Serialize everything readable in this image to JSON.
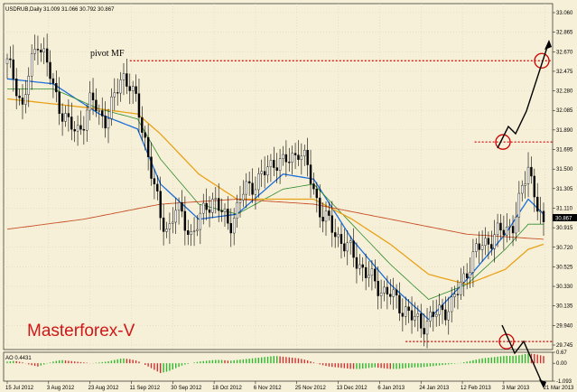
{
  "header": {
    "symbol_info": "USDRUB,Daily  31.009 31.066 30.792 30.867"
  },
  "annotations": {
    "pivot_label": "pivot MF",
    "brand": "Masterforex-V"
  },
  "indicator": {
    "label": "AO 0.4431"
  },
  "colors": {
    "background": "#f7f0d8",
    "grid": "#d9d0b2",
    "candle": "#000000",
    "ma_fast": "#1e6fd9",
    "ma_mid": "#2e8b2e",
    "ma_slow": "#e8a21a",
    "ma_long": "#c8502a",
    "pivot_line": "#cc0000",
    "ao_up": "#2db82d",
    "ao_down": "#d03030",
    "brand_text": "#d01818"
  },
  "chart_data": [
    {
      "type": "candlestick",
      "title": "USDRUB,Daily",
      "ohlc_last": {
        "open": 31.009,
        "high": 31.066,
        "low": 30.792,
        "close": 30.867
      },
      "current_price": "30.867",
      "y_ticks": [
        "33.060",
        "32.865",
        "32.670",
        "32.475",
        "32.280",
        "32.085",
        "31.890",
        "31.695",
        "31.500",
        "31.305",
        "31.110",
        "30.915",
        "30.720",
        "30.525",
        "30.330",
        "30.135",
        "29.940",
        "29.745"
      ],
      "ylim": [
        29.7,
        33.15
      ],
      "x_ticks": [
        "15 Jul 2012",
        "3 Aug 2012",
        "23 Aug 2012",
        "11 Sep 2012",
        "30 Sep 2012",
        "18 Oct 2012",
        "6 Nov 2012",
        "25 Nov 2012",
        "13 Dec 2012",
        "6 Jan 2013",
        "24 Jan 2013",
        "12 Feb 2013",
        "3 Mar 2013",
        "21 Mar 2013"
      ],
      "close_path": [
        [
          0,
          32.55
        ],
        [
          1,
          32.4
        ],
        [
          2,
          32.1
        ],
        [
          3,
          32.5
        ],
        [
          4,
          32.8
        ],
        [
          5,
          32.6
        ],
        [
          6,
          32.3
        ],
        [
          7,
          32.1
        ],
        [
          8,
          31.95
        ],
        [
          9,
          31.85
        ],
        [
          10,
          32.0
        ],
        [
          11,
          32.2
        ],
        [
          12,
          32.05
        ],
        [
          13,
          32.0
        ],
        [
          14,
          32.2
        ],
        [
          15,
          32.45
        ],
        [
          16,
          32.35
        ],
        [
          17,
          32.1
        ],
        [
          18,
          31.8
        ],
        [
          19,
          31.4
        ],
        [
          20,
          31.0
        ],
        [
          21,
          30.9
        ],
        [
          22,
          31.1
        ],
        [
          23,
          31.0
        ],
        [
          24,
          30.85
        ],
        [
          25,
          30.95
        ],
        [
          26,
          31.15
        ],
        [
          27,
          31.2
        ],
        [
          28,
          31.05
        ],
        [
          29,
          30.95
        ],
        [
          30,
          31.1
        ],
        [
          31,
          31.3
        ],
        [
          32,
          31.35
        ],
        [
          33,
          31.4
        ],
        [
          34,
          31.5
        ],
        [
          35,
          31.6
        ],
        [
          36,
          31.55
        ],
        [
          37,
          31.6
        ],
        [
          38,
          31.7
        ],
        [
          39,
          31.55
        ],
        [
          40,
          31.3
        ],
        [
          41,
          31.05
        ],
        [
          42,
          30.95
        ],
        [
          43,
          30.85
        ],
        [
          44,
          30.75
        ],
        [
          45,
          30.65
        ],
        [
          46,
          30.55
        ],
        [
          47,
          30.45
        ],
        [
          48,
          30.35
        ],
        [
          49,
          30.3
        ],
        [
          50,
          30.25
        ],
        [
          51,
          30.15
        ],
        [
          52,
          30.1
        ],
        [
          53,
          30.0
        ],
        [
          54,
          29.95
        ],
        [
          55,
          30.0
        ],
        [
          56,
          30.05
        ],
        [
          57,
          30.1
        ],
        [
          58,
          30.15
        ],
        [
          59,
          30.3
        ],
        [
          60,
          30.5
        ],
        [
          61,
          30.65
        ],
        [
          62,
          30.75
        ],
        [
          63,
          30.8
        ],
        [
          64,
          30.85
        ],
        [
          65,
          30.9
        ],
        [
          66,
          30.95
        ],
        [
          67,
          31.2
        ],
        [
          68,
          31.55
        ],
        [
          69,
          31.2
        ],
        [
          70,
          30.87
        ]
      ],
      "pivot_levels": [
        32.58,
        31.77,
        29.78
      ],
      "ma_series": [
        {
          "values": [
            [
              0,
              32.4
            ],
            [
              6,
              32.35
            ],
            [
              12,
              32.05
            ],
            [
              17,
              31.9
            ],
            [
              20,
              31.35
            ],
            [
              25,
              31.0
            ],
            [
              30,
              31.05
            ],
            [
              36,
              31.45
            ],
            [
              40,
              31.4
            ],
            [
              45,
              30.8
            ],
            [
              50,
              30.35
            ],
            [
              55,
              30.0
            ],
            [
              60,
              30.4
            ],
            [
              65,
              30.85
            ],
            [
              68,
              31.2
            ],
            [
              70,
              31.05
            ]
          ]
        },
        {
          "values": [
            [
              0,
              32.3
            ],
            [
              6,
              32.3
            ],
            [
              12,
              32.1
            ],
            [
              17,
              32.0
            ],
            [
              20,
              31.6
            ],
            [
              25,
              31.15
            ],
            [
              30,
              31.05
            ],
            [
              36,
              31.3
            ],
            [
              40,
              31.35
            ],
            [
              45,
              30.95
            ],
            [
              50,
              30.55
            ],
            [
              55,
              30.2
            ],
            [
              60,
              30.35
            ],
            [
              65,
              30.7
            ],
            [
              68,
              30.95
            ],
            [
              70,
              30.95
            ]
          ]
        },
        {
          "values": [
            [
              0,
              32.2
            ],
            [
              6,
              32.15
            ],
            [
              12,
              32.1
            ],
            [
              17,
              32.05
            ],
            [
              20,
              31.85
            ],
            [
              25,
              31.45
            ],
            [
              30,
              31.2
            ],
            [
              36,
              31.2
            ],
            [
              40,
              31.2
            ],
            [
              45,
              31.0
            ],
            [
              50,
              30.75
            ],
            [
              55,
              30.45
            ],
            [
              60,
              30.35
            ],
            [
              65,
              30.5
            ],
            [
              68,
              30.7
            ],
            [
              70,
              30.75
            ]
          ]
        },
        {
          "values": [
            [
              0,
              30.9
            ],
            [
              10,
              31.0
            ],
            [
              20,
              31.15
            ],
            [
              30,
              31.2
            ],
            [
              40,
              31.15
            ],
            [
              50,
              31.0
            ],
            [
              60,
              30.85
            ],
            [
              70,
              30.8
            ]
          ]
        }
      ]
    },
    {
      "type": "bar",
      "title": "AO 0.4431",
      "y_ticks": [
        "0.67",
        "0.00",
        "-1.093"
      ],
      "ylim": [
        -1.093,
        0.67
      ],
      "values": [
        0.1,
        0.15,
        0.05,
        -0.1,
        -0.2,
        -0.05,
        0.1,
        0.2,
        0.15,
        0.1,
        0.05,
        0.0,
        0.05,
        0.1,
        0.2,
        0.3,
        0.25,
        0.15,
        -0.1,
        -0.35,
        -0.6,
        -0.5,
        -0.3,
        -0.1,
        0.0,
        0.1,
        0.15,
        0.2,
        0.2,
        0.15,
        0.2,
        0.25,
        0.3,
        0.35,
        0.4,
        0.45,
        0.4,
        0.35,
        0.3,
        0.2,
        0.05,
        -0.1,
        -0.2,
        -0.25,
        -0.3,
        -0.35,
        -0.35,
        -0.3,
        -0.25,
        -0.3,
        -0.35,
        -0.35,
        -0.3,
        -0.25,
        -0.25,
        -0.2,
        -0.15,
        -0.1,
        -0.05,
        0.0,
        0.1,
        0.2,
        0.3,
        0.35,
        0.4,
        0.45,
        0.45,
        0.5,
        0.6,
        0.55,
        0.44
      ]
    }
  ]
}
